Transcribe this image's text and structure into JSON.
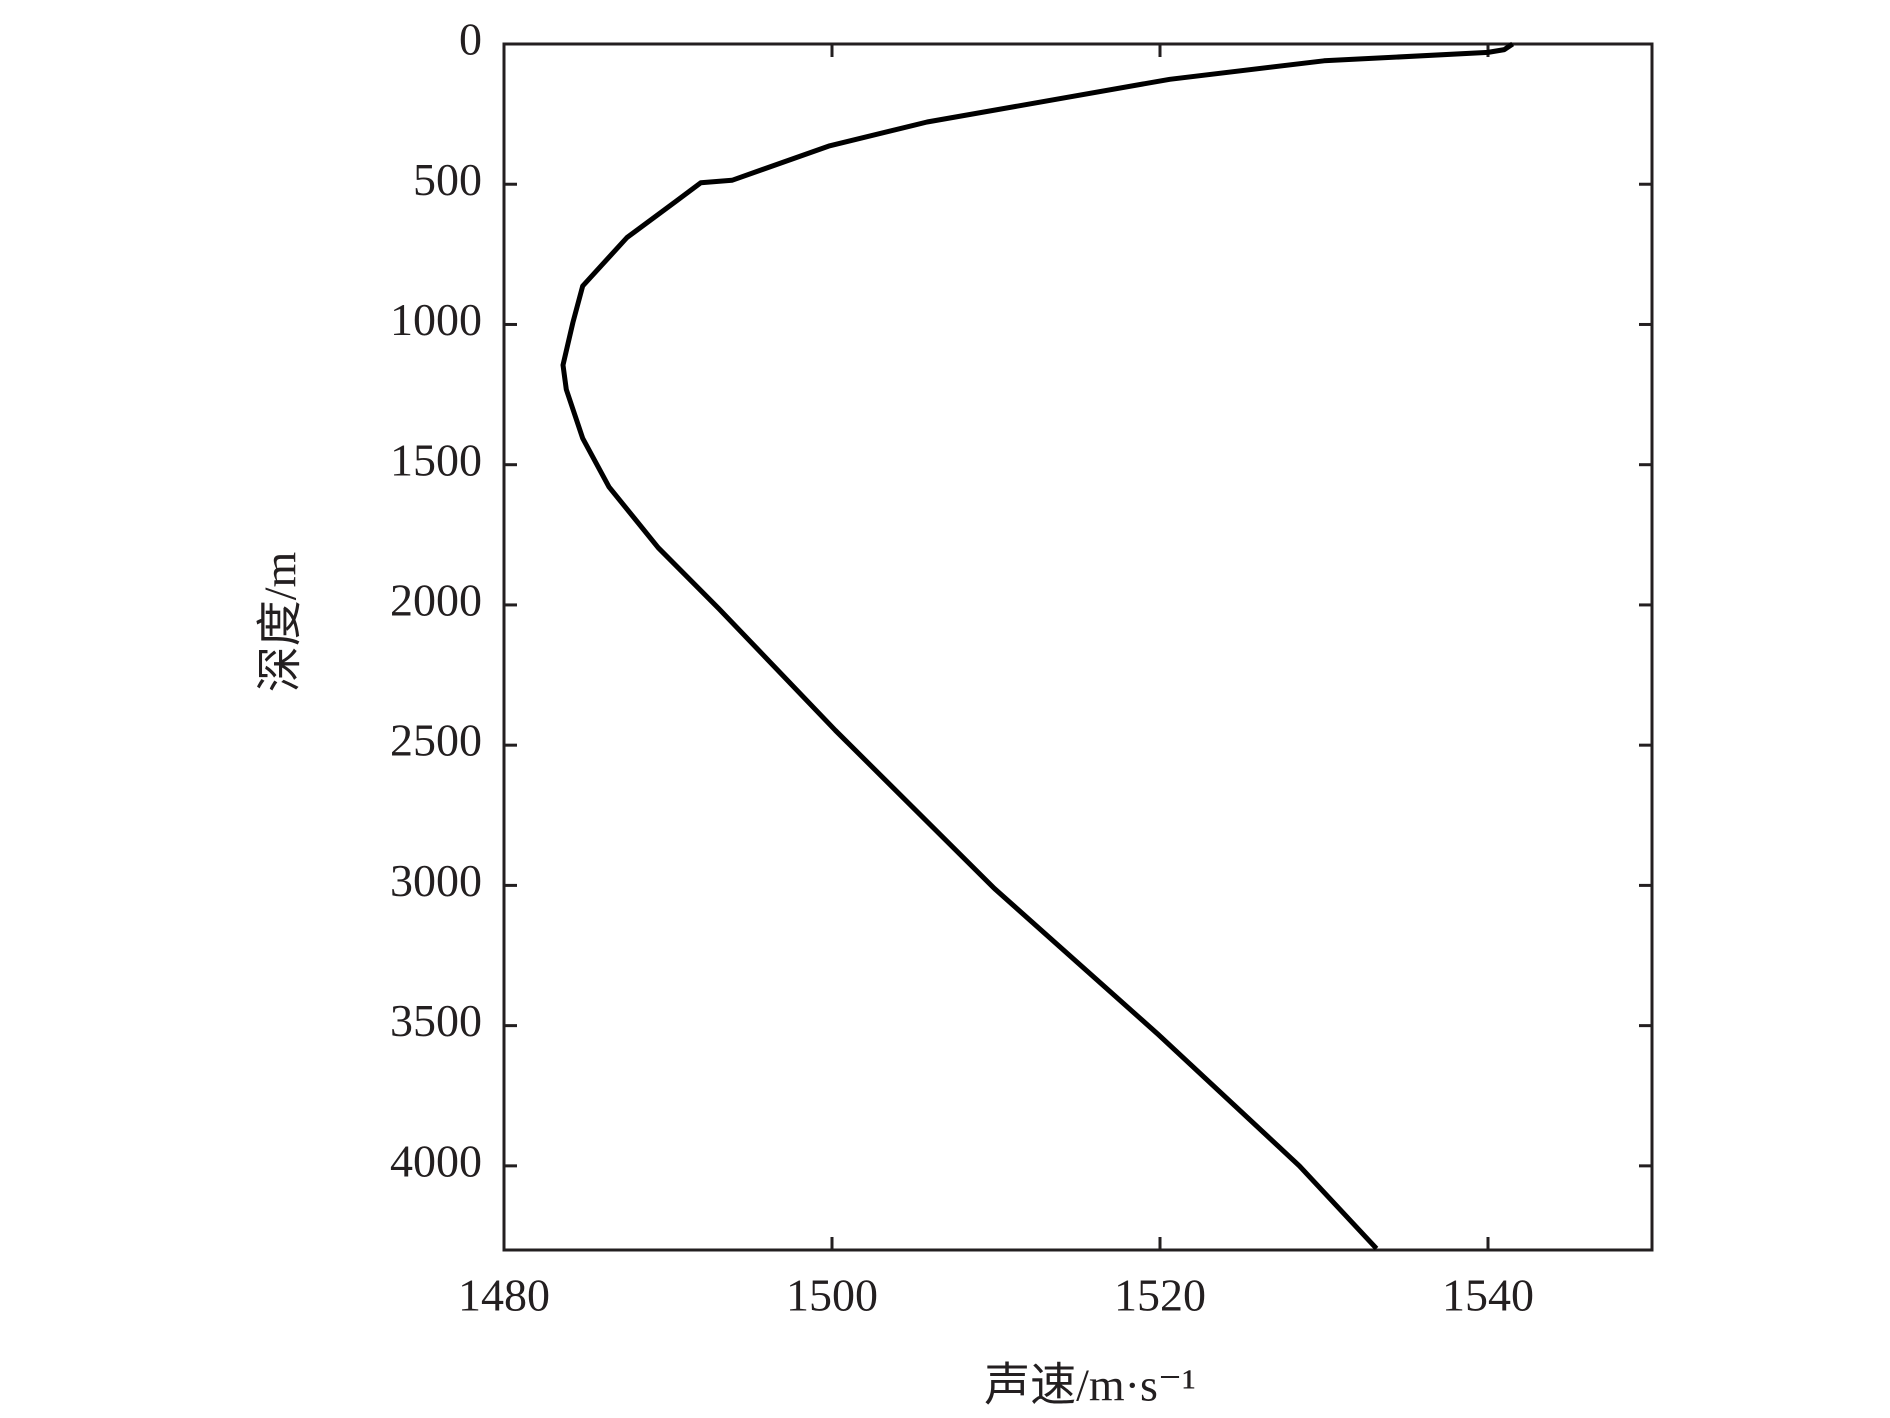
{
  "chart_data": {
    "type": "line",
    "xlabel": "声速/m·s⁻¹",
    "ylabel": "深度/m",
    "x": [
      1541.5,
      1541,
      1540,
      1530,
      1520.6,
      1505.8,
      1499.8,
      1493.9,
      1492,
      1490.5,
      1487.5,
      1484.8,
      1484.2,
      1483.6,
      1483.8,
      1484.8,
      1486.4,
      1489.4,
      1493.1,
      1500.2,
      1509.9,
      1519.9,
      1528.5,
      1533.2
    ],
    "values": [
      0,
      20,
      30,
      60,
      126,
      278,
      364,
      486,
      495,
      560,
      690,
      863,
      993,
      1145,
      1232,
      1406,
      1579,
      1796,
      2013,
      2447,
      3011,
      3532,
      4000,
      4295
    ],
    "color": "#000000",
    "xlim": [
      1480,
      1550
    ],
    "xticks": [
      1480,
      1500,
      1520,
      1540
    ],
    "ylim": [
      0,
      4300
    ],
    "yticks": [
      0,
      500,
      1000,
      1500,
      2000,
      2500,
      3000,
      3500,
      4000
    ],
    "y_inverted": true
  }
}
